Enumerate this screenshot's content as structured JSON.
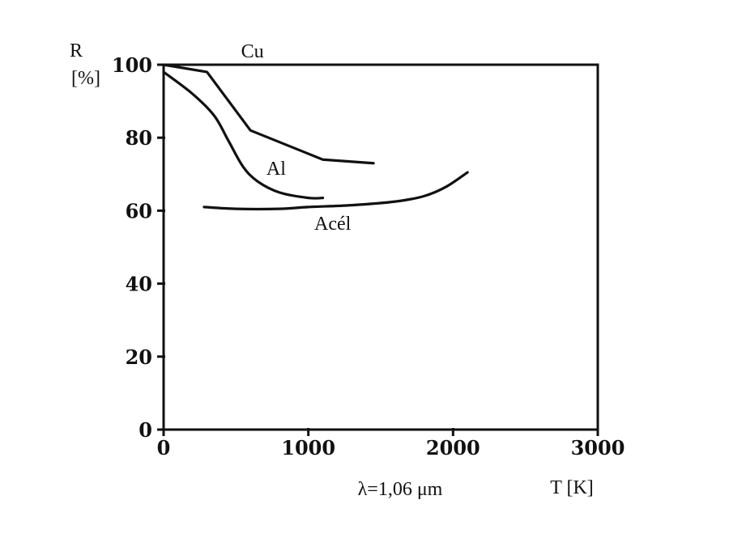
{
  "chart_data": {
    "type": "line",
    "title": "",
    "xlabel": "T [K]",
    "ylabel_lines": [
      "R",
      "[%]"
    ],
    "xlim": [
      0,
      3000
    ],
    "ylim": [
      0,
      100
    ],
    "xticks": [
      0,
      1000,
      2000,
      3000
    ],
    "yticks": [
      0,
      20,
      40,
      60,
      80,
      100
    ],
    "grid": false,
    "legend": "none",
    "annotation": "λ=1,06 μm",
    "series": [
      {
        "name": "Cu",
        "x": [
          0,
          300,
          600,
          1100,
          1450
        ],
        "y": [
          100,
          98,
          82,
          74,
          73
        ]
      },
      {
        "name": "Al",
        "x": [
          0,
          200,
          350,
          450,
          550,
          650,
          800,
          1000,
          1100
        ],
        "y": [
          98,
          92,
          86,
          79,
          72,
          68,
          65,
          63.5,
          63.5
        ]
      },
      {
        "name": "Acél",
        "x": [
          280,
          500,
          800,
          1000,
          1300,
          1600,
          1800,
          1950,
          2100
        ],
        "y": [
          61,
          60.5,
          60.5,
          61,
          61.5,
          62.5,
          64,
          66.5,
          70.5
        ]
      }
    ]
  }
}
